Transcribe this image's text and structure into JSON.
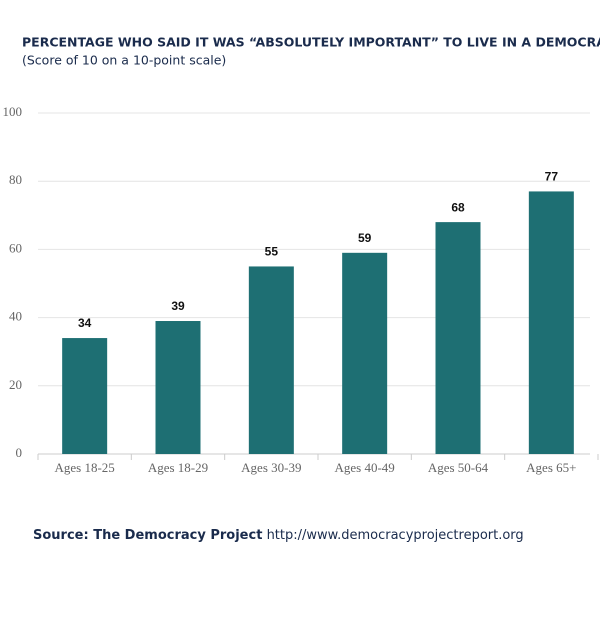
{
  "chart_data": {
    "type": "bar",
    "title": "PERCENTAGE WHO SAID IT WAS “ABSOLUTELY IMPORTANT” TO LIVE IN A DEMOCRACY",
    "subtitle": "(Score of 10 on a 10-point scale)",
    "categories": [
      "Ages 18-25",
      "Ages 18-29",
      "Ages 30-39",
      "Ages 40-49",
      "Ages 50-64",
      "Ages 65+"
    ],
    "values": [
      34,
      39,
      55,
      59,
      68,
      77
    ],
    "color": "#1e6f73",
    "ylim": [
      0,
      100
    ],
    "yticks": [
      0,
      20,
      40,
      60,
      80,
      100
    ],
    "grid": true,
    "source_label": "Source: The Democracy Project",
    "source_url": "http://www.democracyprojectreport.org"
  }
}
